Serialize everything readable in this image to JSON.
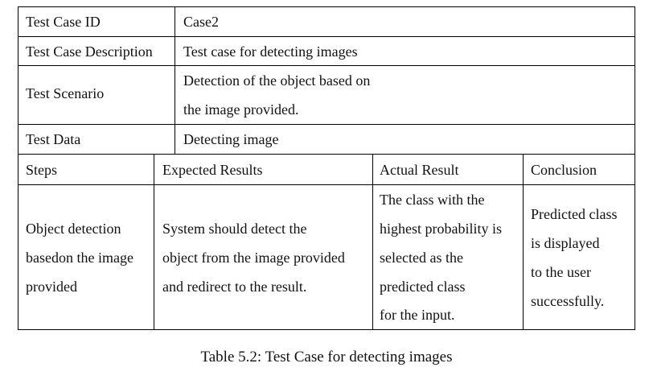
{
  "table": {
    "rows_top": [
      {
        "label": "Test Case ID",
        "value_lines": [
          "Case2"
        ]
      },
      {
        "label": "Test Case Description",
        "value_lines": [
          "Test case for detecting images"
        ]
      },
      {
        "label": "Test Scenario",
        "value_lines": [
          "Detection of the object based on",
          "the image provided."
        ]
      },
      {
        "label": "Test Data",
        "value_lines": [
          "Detecting image"
        ]
      }
    ],
    "headers": [
      "Steps",
      "Expected Results",
      "Actual Result",
      "Conclusion"
    ],
    "body": [
      [
        "Object detection",
        "basedon the image",
        "provided"
      ],
      [
        "System should detect the",
        "object from the image provided",
        "and redirect to the result."
      ],
      [
        "The class with the",
        "highest probability is",
        "selected as the",
        "predicted class",
        "for the input."
      ],
      [
        "Predicted class",
        "is displayed",
        "to the user",
        "successfully."
      ]
    ]
  },
  "caption": "Table 5.2: Test Case for detecting images"
}
